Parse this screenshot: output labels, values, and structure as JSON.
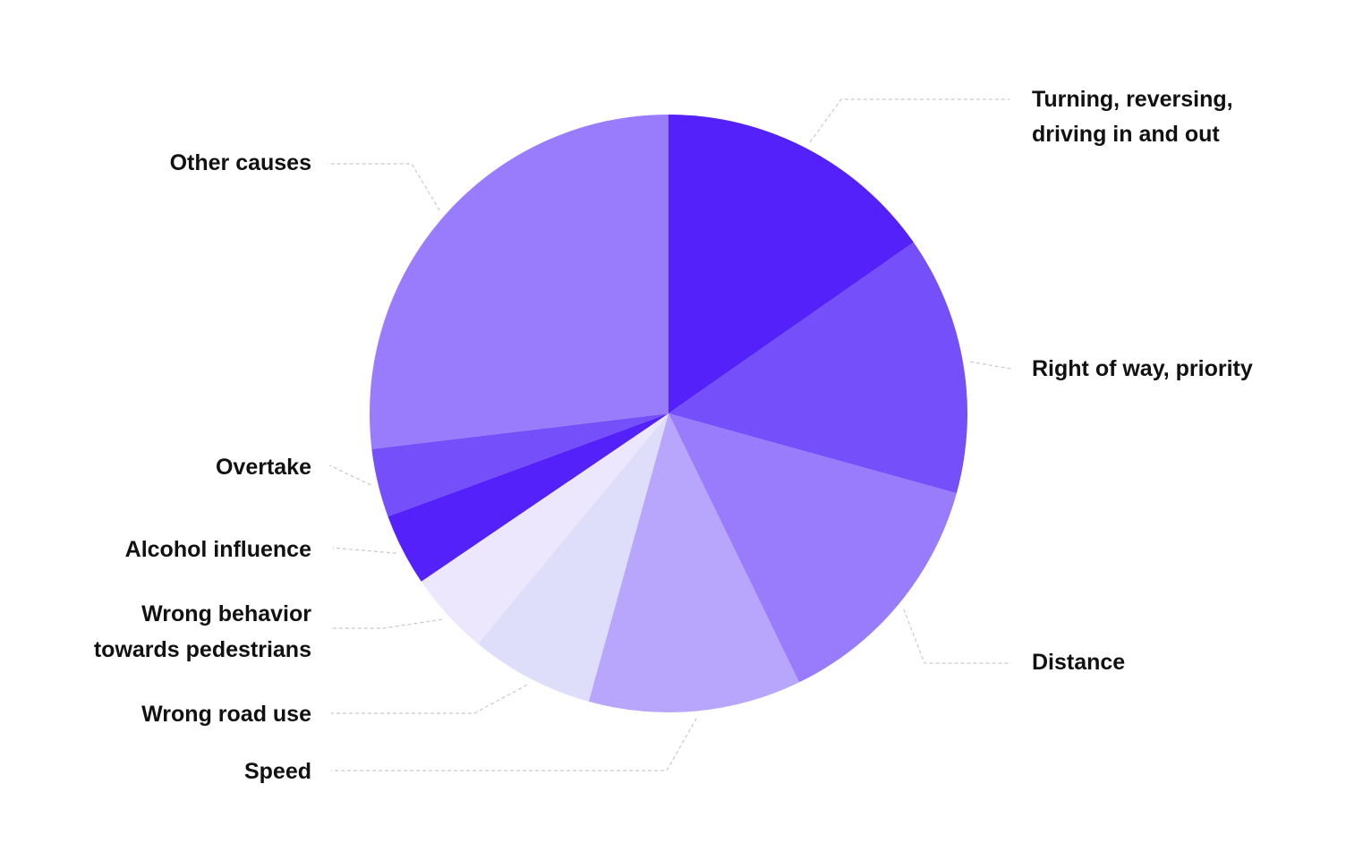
{
  "chart_data": {
    "type": "pie",
    "title": "",
    "slices": [
      {
        "label_lines": [
          "Turning, reversing,",
          "driving in and out"
        ],
        "value": 15.3,
        "color": "#5421fa"
      },
      {
        "label_lines": [
          "Right of way, priority"
        ],
        "value": 14.0,
        "color": "#754ff9"
      },
      {
        "label_lines": [
          "Distance"
        ],
        "value": 13.5,
        "color": "#987cfb"
      },
      {
        "label_lines": [
          "Speed"
        ],
        "value": 11.5,
        "color": "#b8a6fc"
      },
      {
        "label_lines": [
          "Wrong road use"
        ],
        "value": 6.7,
        "color": "#dedefb"
      },
      {
        "label_lines": [
          "Wrong behavior",
          "towards pedestrians"
        ],
        "value": 4.5,
        "color": "#ede7fd"
      },
      {
        "label_lines": [
          "Alcohol influence"
        ],
        "value": 3.9,
        "color": "#5421fa"
      },
      {
        "label_lines": [
          "Overtake"
        ],
        "value": 3.7,
        "color": "#754ff9"
      },
      {
        "label_lines": [
          "Other causes"
        ],
        "value": 26.9,
        "color": "#987cfb"
      }
    ],
    "start_angle": "12 o'clock",
    "direction": "clockwise",
    "legend": "none",
    "labels": "outside with dashed leader lines"
  }
}
